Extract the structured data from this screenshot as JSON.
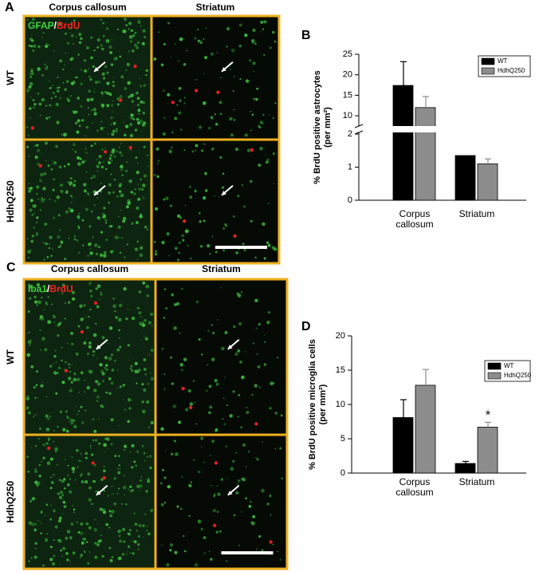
{
  "panels": [
    {
      "letter": "A",
      "columns": [
        "Corpus callosum",
        "Striatum"
      ],
      "rows": [
        "WT",
        "HdhQ250"
      ],
      "stain": [
        "GFAP",
        "/",
        "BrdU"
      ]
    },
    {
      "letter": "C",
      "columns": [
        "Corpus callosum",
        "Striatum"
      ],
      "rows": [
        "WT",
        "HdhQ250"
      ],
      "stain": [
        "Iba1",
        "/",
        "BrdU"
      ]
    }
  ],
  "chart_data": [
    {
      "type": "bar",
      "panel": "B",
      "ylabel": [
        "% BrdU positive astrocytes",
        "(per mm²)"
      ],
      "categories": [
        "Corpus callosum",
        "Striatum"
      ],
      "series": [
        {
          "name": "WT",
          "color": "#000000",
          "values": [
            17.4,
            1.35
          ],
          "errors": [
            5.8,
            0
          ]
        },
        {
          "name": "HdhQ250",
          "color": "#8c8c8c",
          "values": [
            12,
            1.1
          ],
          "errors": [
            2.7,
            0.15
          ]
        }
      ],
      "ylim": [
        0,
        25
      ],
      "ybreak": [
        2,
        7.5
      ],
      "yticks": [
        0,
        1,
        2,
        10,
        15,
        20,
        25
      ]
    },
    {
      "type": "bar",
      "panel": "D",
      "ylabel": [
        "% BrdU positive microglia cells",
        "(per mm²)"
      ],
      "categories": [
        "Corpus callosum",
        "Striatum"
      ],
      "series": [
        {
          "name": "WT",
          "color": "#000000",
          "values": [
            8.1,
            1.4
          ],
          "errors": [
            2.6,
            0.3
          ]
        },
        {
          "name": "HdhQ250",
          "color": "#8c8c8c",
          "values": [
            12.8,
            6.7
          ],
          "errors": [
            2.3,
            0.7
          ]
        }
      ],
      "annotation": "*",
      "ylim": [
        0,
        20
      ],
      "yticks": [
        0,
        5,
        10,
        15,
        20
      ]
    }
  ]
}
